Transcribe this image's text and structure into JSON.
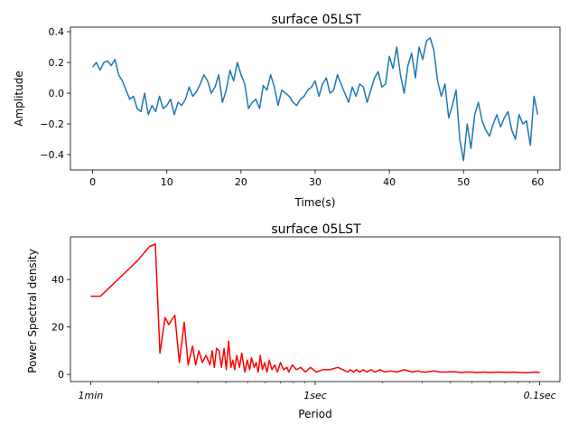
{
  "figure": {
    "background": "#ffffff"
  },
  "chart_data": [
    {
      "type": "line",
      "title": "surface 05LST",
      "xlabel": "Time(s)",
      "ylabel": "Amplitude",
      "xlim": [
        -3,
        63
      ],
      "ylim": [
        -0.5,
        0.43
      ],
      "xticks": [
        0,
        10,
        20,
        30,
        40,
        50,
        60
      ],
      "xtick_labels": [
        "0",
        "10",
        "20",
        "30",
        "40",
        "50",
        "60"
      ],
      "yticks": [
        -0.4,
        -0.2,
        0.0,
        0.2,
        0.4
      ],
      "ytick_labels": [
        "−0.4",
        "−0.2",
        "0.0",
        "0.2",
        "0.4"
      ],
      "grid": false,
      "series": [
        {
          "color": "#1f77b4",
          "x": [
            0,
            0.5,
            1,
            1.5,
            2,
            2.5,
            3,
            3.5,
            4,
            4.5,
            5,
            5.5,
            6,
            6.5,
            7,
            7.5,
            8,
            8.5,
            9,
            9.5,
            10,
            10.5,
            11,
            11.5,
            12,
            12.5,
            13,
            13.5,
            14,
            14.5,
            15,
            15.5,
            16,
            16.5,
            17,
            17.5,
            18,
            18.5,
            19,
            19.5,
            20,
            20.5,
            21,
            21.5,
            22,
            22.5,
            23,
            23.5,
            24,
            24.5,
            25,
            25.5,
            26,
            26.5,
            27,
            27.5,
            28,
            28.5,
            29,
            29.5,
            30,
            30.5,
            31,
            31.5,
            32,
            32.5,
            33,
            33.5,
            34,
            34.5,
            35,
            35.5,
            36,
            36.5,
            37,
            37.5,
            38,
            38.5,
            39,
            39.5,
            40,
            40.5,
            41,
            41.5,
            42,
            42.5,
            43,
            43.5,
            44,
            44.5,
            45,
            45.5,
            46,
            46.5,
            47,
            47.5,
            48,
            48.5,
            49,
            49.5,
            50,
            50.5,
            51,
            51.5,
            52,
            52.5,
            53,
            53.5,
            54,
            54.5,
            55,
            55.5,
            56,
            56.5,
            57,
            57.5,
            58,
            58.5,
            59,
            59.5,
            60
          ],
          "values": [
            0.17,
            0.2,
            0.15,
            0.2,
            0.21,
            0.18,
            0.22,
            0.12,
            0.08,
            0.02,
            -0.04,
            -0.02,
            -0.1,
            -0.12,
            0.0,
            -0.14,
            -0.08,
            -0.12,
            -0.02,
            -0.1,
            -0.08,
            -0.04,
            -0.14,
            -0.06,
            -0.08,
            -0.04,
            0.04,
            -0.02,
            0.01,
            0.06,
            0.12,
            0.08,
            0.0,
            0.04,
            0.12,
            -0.06,
            0.02,
            0.15,
            0.08,
            0.2,
            0.12,
            0.06,
            -0.1,
            -0.06,
            -0.04,
            -0.1,
            0.05,
            0.02,
            0.12,
            0.04,
            -0.08,
            0.02,
            0.0,
            -0.02,
            -0.06,
            -0.08,
            -0.04,
            -0.02,
            0.02,
            0.04,
            0.08,
            -0.02,
            0.06,
            0.1,
            0.0,
            0.02,
            0.12,
            0.06,
            0.0,
            -0.06,
            0.04,
            -0.02,
            0.06,
            0.04,
            -0.06,
            0.02,
            0.1,
            0.14,
            0.04,
            0.06,
            0.24,
            0.16,
            0.3,
            0.12,
            0.0,
            0.18,
            0.26,
            0.1,
            0.3,
            0.22,
            0.34,
            0.36,
            0.28,
            0.08,
            -0.02,
            0.06,
            -0.16,
            -0.08,
            0.02,
            -0.3,
            -0.44,
            -0.2,
            -0.36,
            -0.14,
            -0.06,
            -0.18,
            -0.24,
            -0.28,
            -0.2,
            -0.14,
            -0.22,
            -0.16,
            -0.12,
            -0.24,
            -0.3,
            -0.14,
            -0.2,
            -0.18,
            -0.34,
            -0.02,
            -0.14
          ]
        }
      ]
    },
    {
      "type": "line",
      "title": "surface 05LST",
      "xlabel": "Period",
      "ylabel": "Power Spectral density",
      "x_scale": "log",
      "ylim": [
        -3,
        58
      ],
      "yticks": [
        0,
        20,
        40
      ],
      "ytick_labels": [
        "0",
        "20",
        "40"
      ],
      "xtick_labels": [
        "1min",
        "1sec",
        "0.1sec"
      ],
      "grid": false,
      "series": [
        {
          "color": "#ff0000",
          "x": [
            1.2,
            1,
            0.5,
            0.4,
            0.36,
            0.33,
            0.3,
            0.28,
            0.25,
            0.23,
            0.21,
            0.195,
            0.18,
            0.17,
            0.16,
            0.15,
            0.14,
            0.13,
            0.125,
            0.12,
            0.115,
            0.11,
            0.105,
            0.1,
            0.096,
            0.092,
            0.088,
            0.085,
            0.082,
            0.079,
            0.075,
            0.072,
            0.068,
            0.065,
            0.062,
            0.06,
            0.057,
            0.055,
            0.053,
            0.051,
            0.049,
            0.047,
            0.045,
            0.043,
            0.041,
            0.039,
            0.037,
            0.035,
            0.033,
            0.031,
            0.03,
            0.028,
            0.026,
            0.024,
            0.022,
            0.02,
            0.018,
            0.016,
            0.014,
            0.012,
            0.01,
            0.0095,
            0.009,
            0.0085,
            0.008,
            0.0075,
            0.007,
            0.0065,
            0.006,
            0.0055,
            0.005,
            0.0045,
            0.004,
            0.0035,
            0.003,
            0.0027,
            0.0025,
            0.0023,
            0.002,
            0.0018,
            0.0016,
            0.0014,
            0.0013,
            0.0012,
            0.0011,
            0.001,
            0.0009,
            0.0008,
            0.0007,
            0.0006,
            0.0005,
            0.00045,
            0.0004,
            0.00035,
            0.0003,
            0.00028
          ],
          "values": [
            33,
            33,
            48,
            54,
            55,
            9,
            24,
            21,
            25,
            5,
            22,
            4,
            12,
            4,
            10,
            5,
            8,
            4,
            10,
            3,
            11,
            10,
            3,
            11,
            2,
            14,
            3,
            6,
            2,
            8,
            3,
            9,
            1,
            6,
            2,
            7,
            3,
            5,
            1,
            8,
            2,
            5,
            1,
            6,
            2,
            4,
            1,
            5,
            2,
            3,
            1,
            4,
            2,
            3,
            1,
            3,
            1,
            2,
            2,
            3,
            1,
            2,
            1,
            2,
            1,
            2,
            1,
            2,
            1,
            2,
            1,
            1.5,
            1,
            2,
            1,
            1.5,
            1,
            1,
            1.5,
            1,
            1,
            1.2,
            1,
            0.8,
            1,
            1,
            0.8,
            1,
            0.8,
            1,
            0.8,
            1,
            0.8,
            0.7,
            1,
            0.8
          ]
        }
      ]
    }
  ]
}
